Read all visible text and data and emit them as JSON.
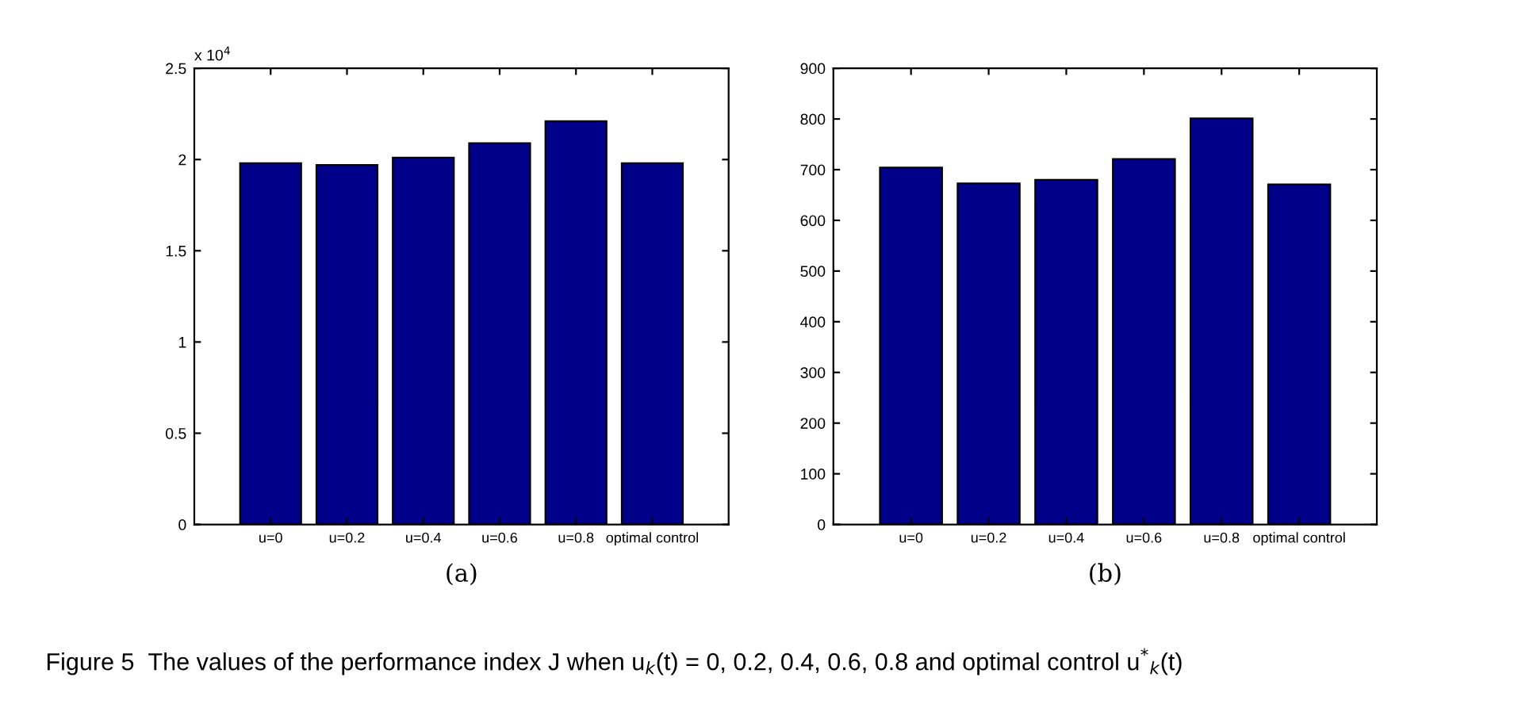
{
  "chart_data": [
    {
      "type": "bar",
      "xlabel": "(a)",
      "categories": [
        "u=0",
        "u=0.2",
        "u=0.4",
        "u=0.6",
        "u=0.8",
        "optimal control"
      ],
      "values": [
        1.98,
        1.97,
        2.01,
        2.09,
        2.21,
        1.98
      ],
      "color": "#000088",
      "ylim": [
        0,
        2.5
      ],
      "yticks": [
        0,
        0.5,
        1,
        1.5,
        2,
        2.5
      ],
      "annotations": [
        "x 10$^{4}$",
        "Figure 5  The values of the performance index J when u$_{k}$(t) = 0, 0.2, 0.4, 0.6, 0.8 and optimal control u$^{*}$$_{k}$(t)"
      ]
    },
    {
      "type": "bar",
      "xlabel": "(b)",
      "categories": [
        "u=0",
        "u=0.2",
        "u=0.4",
        "u=0.6",
        "u=0.8",
        "optimal control"
      ],
      "values": [
        704,
        673,
        680,
        721,
        801,
        671
      ],
      "color": "#000088",
      "ylim": [
        0,
        900
      ],
      "yticks": [
        0,
        100,
        200,
        300,
        400,
        500,
        600,
        700,
        800,
        900
      ]
    }
  ]
}
